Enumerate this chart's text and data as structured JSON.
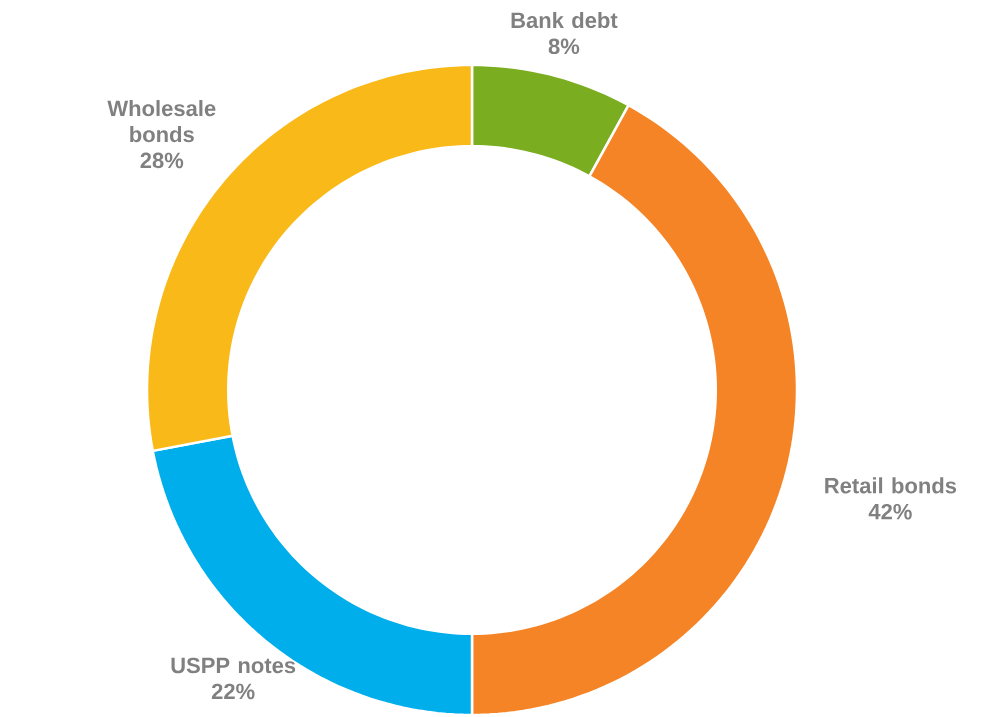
{
  "chart_data": {
    "type": "donut",
    "categories": [
      "Bank debt",
      "Retail bonds",
      "USPP notes",
      "Wholesale bonds"
    ],
    "values": [
      8,
      42,
      22,
      28
    ],
    "colors": [
      "#7aad1f",
      "#f58426",
      "#00aeeb",
      "#f9b918"
    ],
    "value_labels": [
      "8%",
      "42%",
      "22%",
      "28%"
    ]
  }
}
